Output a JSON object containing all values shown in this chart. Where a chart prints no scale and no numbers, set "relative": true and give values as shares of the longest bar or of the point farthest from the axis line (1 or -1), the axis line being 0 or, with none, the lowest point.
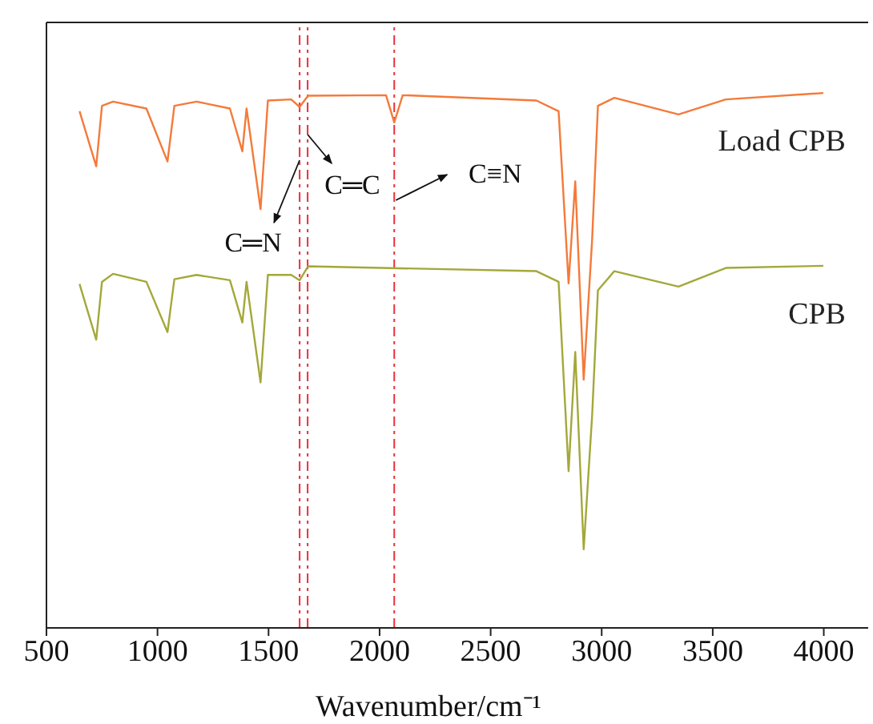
{
  "chart_data": {
    "type": "line",
    "xlabel": "Wavenumber/cm⁻¹",
    "relative": true,
    "xlim": [
      500,
      4200
    ],
    "xticks": [
      500,
      1000,
      1500,
      2000,
      2500,
      3000,
      3500,
      4000
    ],
    "marker": "none",
    "line_style": "solid",
    "series": [
      {
        "name": "Load CPB",
        "color": "#f47a3a",
        "x": [
          649,
          724,
          750,
          800,
          950,
          1045,
          1076,
          1176,
          1326,
          1382,
          1401,
          1464,
          1497,
          1602,
          1640,
          1678,
          2029,
          2066,
          2104,
          2706,
          2806,
          2851,
          2881,
          2919,
          2957,
          2983,
          3057,
          3346,
          3559,
          3998
        ],
        "values": [
          0.966,
          0.863,
          0.976,
          0.984,
          0.971,
          0.872,
          0.976,
          0.984,
          0.971,
          0.891,
          0.971,
          0.783,
          0.986,
          0.988,
          0.974,
          0.995,
          0.996,
          0.945,
          0.996,
          0.986,
          0.966,
          0.644,
          0.835,
          0.464,
          0.726,
          0.976,
          0.991,
          0.96,
          0.988,
          1.0
        ]
      },
      {
        "name": "CPB",
        "color": "#a3a83a",
        "x": [
          649,
          724,
          750,
          800,
          950,
          1045,
          1076,
          1176,
          1326,
          1382,
          1401,
          1464,
          1497,
          1602,
          1640,
          1678,
          2706,
          2806,
          2851,
          2881,
          2919,
          2957,
          2983,
          3057,
          3346,
          3559,
          3998
        ],
        "values": [
          0.643,
          0.539,
          0.647,
          0.662,
          0.647,
          0.553,
          0.652,
          0.66,
          0.65,
          0.571,
          0.647,
          0.459,
          0.66,
          0.66,
          0.65,
          0.676,
          0.667,
          0.647,
          0.293,
          0.516,
          0.147,
          0.397,
          0.631,
          0.667,
          0.638,
          0.673,
          0.677
        ]
      }
    ],
    "ref_lines": [
      {
        "axis": "x",
        "value": 1640,
        "label": "C═N",
        "color": "#e8303a",
        "line_style": "dashed"
      },
      {
        "axis": "x",
        "value": 1676,
        "label": "C═C",
        "color": "#e8303a",
        "line_style": "dashed"
      },
      {
        "axis": "x",
        "value": 2066,
        "label": "C≡N",
        "color": "#e8303a",
        "line_style": "dashed"
      }
    ]
  }
}
